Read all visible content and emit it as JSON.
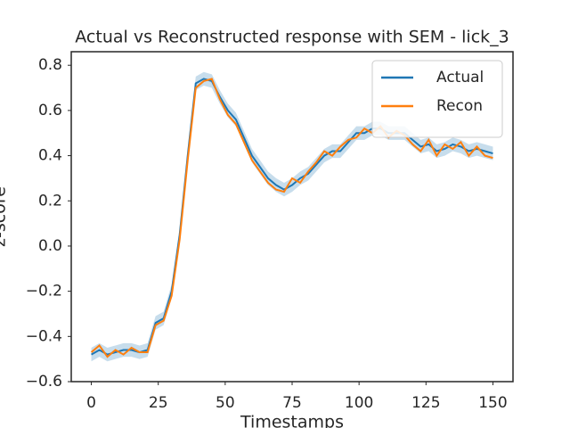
{
  "chart_data": {
    "type": "line",
    "title": "Actual vs Reconstructed response with SEM - lick_3",
    "x_label": "Timestamps",
    "y_label": "z-score",
    "x": [
      0,
      3,
      6,
      9,
      12,
      15,
      18,
      21,
      24,
      27,
      30,
      33,
      36,
      39,
      42,
      45,
      48,
      51,
      54,
      57,
      60,
      63,
      66,
      69,
      72,
      75,
      78,
      81,
      84,
      87,
      90,
      93,
      96,
      99,
      102,
      105,
      108,
      111,
      114,
      117,
      120,
      123,
      126,
      129,
      132,
      135,
      138,
      141,
      144,
      147,
      150
    ],
    "series": [
      {
        "name": "Actual",
        "color": "#1f77b4",
        "values": [
          -0.48,
          -0.46,
          -0.48,
          -0.47,
          -0.46,
          -0.46,
          -0.47,
          -0.46,
          -0.34,
          -0.32,
          -0.2,
          0.05,
          0.4,
          0.72,
          0.74,
          0.73,
          0.66,
          0.6,
          0.56,
          0.48,
          0.4,
          0.35,
          0.3,
          0.27,
          0.25,
          0.27,
          0.3,
          0.32,
          0.36,
          0.4,
          0.42,
          0.42,
          0.46,
          0.5,
          0.5,
          0.52,
          0.52,
          0.5,
          0.5,
          0.5,
          0.47,
          0.44,
          0.45,
          0.42,
          0.43,
          0.45,
          0.44,
          0.42,
          0.43,
          0.42,
          0.41
        ],
        "sem": [
          0.03,
          0.03,
          0.03,
          0.03,
          0.03,
          0.03,
          0.03,
          0.03,
          0.03,
          0.03,
          0.03,
          0.03,
          0.03,
          0.03,
          0.03,
          0.03,
          0.03,
          0.03,
          0.03,
          0.03,
          0.03,
          0.03,
          0.03,
          0.03,
          0.03,
          0.03,
          0.03,
          0.03,
          0.03,
          0.03,
          0.03,
          0.03,
          0.03,
          0.03,
          0.03,
          0.03,
          0.03,
          0.03,
          0.03,
          0.03,
          0.03,
          0.03,
          0.03,
          0.03,
          0.03,
          0.03,
          0.03,
          0.03,
          0.03,
          0.03,
          0.03
        ]
      },
      {
        "name": "Recon",
        "color": "#ff7f0e",
        "values": [
          -0.47,
          -0.44,
          -0.49,
          -0.46,
          -0.48,
          -0.45,
          -0.47,
          -0.47,
          -0.35,
          -0.33,
          -0.22,
          0.03,
          0.38,
          0.7,
          0.73,
          0.74,
          0.65,
          0.58,
          0.54,
          0.46,
          0.38,
          0.33,
          0.28,
          0.25,
          0.24,
          0.3,
          0.28,
          0.33,
          0.37,
          0.42,
          0.4,
          0.44,
          0.47,
          0.48,
          0.52,
          0.5,
          0.53,
          0.48,
          0.51,
          0.49,
          0.45,
          0.42,
          0.47,
          0.4,
          0.45,
          0.43,
          0.46,
          0.4,
          0.44,
          0.4,
          0.39
        ]
      }
    ],
    "xlim": [
      -7.5,
      157.5
    ],
    "xticks": [
      0,
      25,
      50,
      75,
      100,
      125,
      150
    ],
    "ylim": [
      -0.6,
      0.86
    ],
    "yticks": [
      {
        "value": -0.6,
        "label": "−0.6"
      },
      {
        "value": -0.4,
        "label": "−0.4"
      },
      {
        "value": -0.2,
        "label": "−0.2"
      },
      {
        "value": 0,
        "label": "0.0"
      },
      {
        "value": 0.2,
        "label": "0.2"
      },
      {
        "value": 0.4,
        "label": "0.4"
      },
      {
        "value": 0.6,
        "label": "0.6"
      },
      {
        "value": 0.8,
        "label": "0.8"
      }
    ],
    "legend": "upper right"
  }
}
